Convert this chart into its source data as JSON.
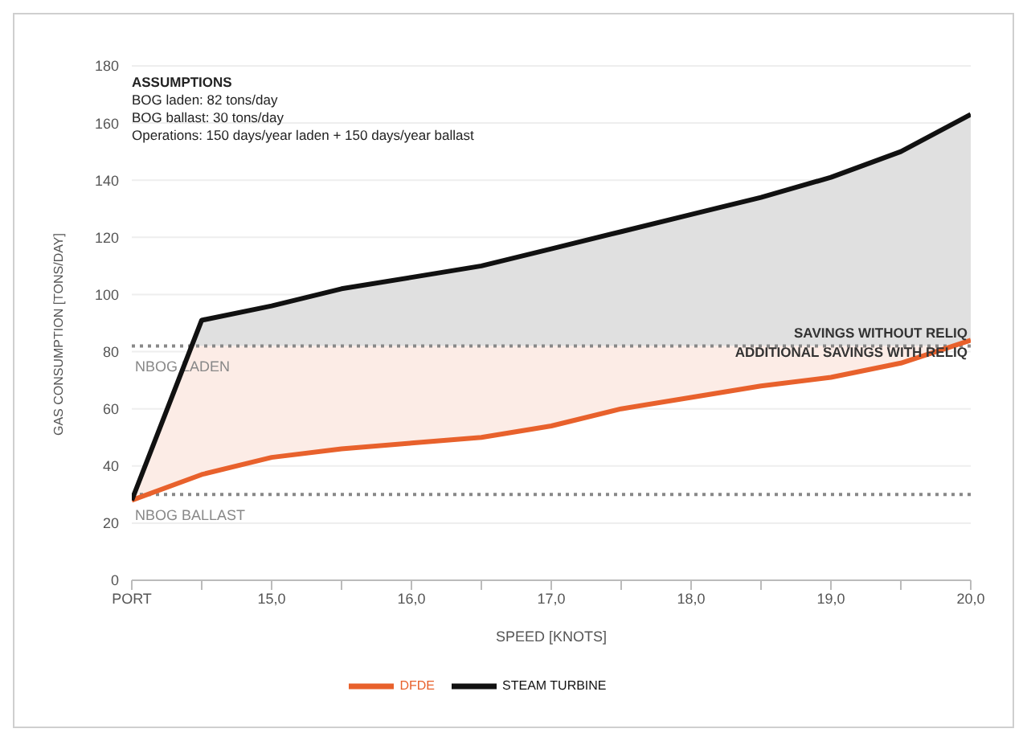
{
  "chart_data": {
    "type": "line",
    "xlabel": "SPEED [KNOTS]",
    "ylabel": "GAS CONSUMPTION [TONS/DAY]",
    "categories": [
      "PORT",
      null,
      "15,0",
      null,
      "16,0",
      null,
      "17,0",
      null,
      "18,0",
      null,
      "19,0",
      null,
      "20,0"
    ],
    "series": [
      {
        "name": "DFDE",
        "color": "#e8612c",
        "values": [
          28,
          37,
          43,
          46,
          48,
          50,
          54,
          60,
          64,
          68,
          71,
          76,
          84
        ]
      },
      {
        "name": "STEAM TURBINE",
        "type": "area",
        "color": "#111111",
        "values": [
          28,
          91,
          96,
          102,
          106,
          110,
          116,
          122,
          128,
          134,
          141,
          150,
          163
        ]
      }
    ],
    "ylim": [
      0,
      180
    ],
    "yticks": [
      0,
      20,
      40,
      60,
      80,
      100,
      120,
      140,
      160,
      180
    ],
    "grid": "y",
    "legend": "bottom",
    "line_style": "solid",
    "ref_lines": [
      {
        "axis": "y",
        "value": 82,
        "label": "NBOG LADEN",
        "color": "#888888",
        "line_style": "dotted"
      },
      {
        "axis": "y",
        "value": 30,
        "label": "NBOG BALLAST",
        "color": "#888888",
        "line_style": "dotted"
      }
    ],
    "annotations": [
      "ASSUMPTIONS",
      "BOG laden: 82 tons/day",
      "BOG ballast: 30 tons/day",
      "Operations: 150 days/year laden + 150 days/year ballast",
      "SAVINGS WITHOUT RELIQ",
      "ADDITIONAL SAVINGS WITH RELIQ"
    ]
  }
}
